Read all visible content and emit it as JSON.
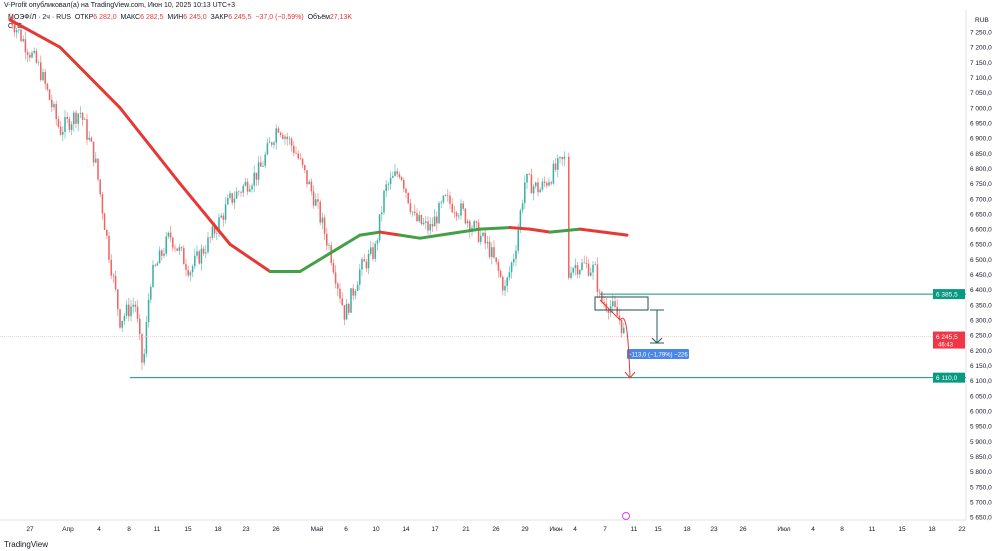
{
  "header": {
    "published": "V-Profit опубликовал(а) на TradingView.com, Июн 10, 2025 10:13 UTC+3"
  },
  "legend": {
    "symbol": "МОЭФ/Л · 2ч · RUS",
    "open_label": "ОТКР",
    "open": "6 282,0",
    "high_label": "МАКС",
    "high": "6 282,5",
    "low_label": "МИН",
    "low": "6 245,0",
    "close_label": "ЗАКР",
    "close": "6 245,5",
    "change": "−37,0 (−0,59%)",
    "vol_label": "Объём",
    "vol": "27,13K",
    "line2": "СТЕ"
  },
  "footer": {
    "brand": "TradingView"
  },
  "colors": {
    "up": "#26a69a",
    "down": "#ef5350",
    "ma_down": "#e53935",
    "ma_up": "#43a047",
    "level": "#089981",
    "measure": "#4a86e8",
    "axis_text": "#131722"
  },
  "chart_data": {
    "type": "candlestick",
    "currency": "RUB",
    "ylim": [
      5650,
      7300
    ],
    "yticks": [
      "7 250,0",
      "7 200,0",
      "7 150,0",
      "7 100,0",
      "7 050,0",
      "7 000,0",
      "6 950,0",
      "6 900,0",
      "6 850,0",
      "6 800,0",
      "6 750,0",
      "6 700,0",
      "6 650,0",
      "6 600,0",
      "6 550,0",
      "6 500,0",
      "6 450,0",
      "6 400,0",
      "6 350,0",
      "6 300,0",
      "6 250,0",
      "6 200,0",
      "6 150,0",
      "6 100,0",
      "6 050,0",
      "6 000,0",
      "5 950,0",
      "5 900,0",
      "5 850,0",
      "5 800,0",
      "5 750,0",
      "5 700,0",
      "5 650,0"
    ],
    "xticks": [
      "27",
      "Апр",
      "4",
      "8",
      "11",
      "15",
      "18",
      "23",
      "26",
      "Май",
      "6",
      "10",
      "14",
      "17",
      "21",
      "26",
      "29",
      "Июн",
      "4",
      "7",
      "11",
      "15",
      "18",
      "23",
      "26",
      "Июл",
      "4",
      "8",
      "11",
      "15",
      "18",
      "22"
    ],
    "price_path": [
      7300,
      7125,
      6925,
      6990,
      6830,
      6500,
      6300,
      6360,
      6135,
      6430,
      6580,
      6465,
      6565,
      6695,
      6795,
      6945,
      6860,
      6695,
      6530,
      6315,
      6465,
      6530,
      6730,
      6795,
      6630,
      6600,
      6695,
      6665,
      6600,
      6530,
      6400,
      6530,
      6760,
      6730,
      6795,
      6830,
      6400,
      6480,
      6480,
      6465,
      6365,
      6350,
      6300,
      6245.5
    ],
    "moving_average": [
      7290,
      7200,
      7000,
      6750,
      6550,
      6460,
      6460,
      6520,
      6580,
      6590,
      6580,
      6570,
      6585,
      6600,
      6605,
      6600,
      6590,
      6600,
      6580
    ],
    "ma_colors": [
      "down",
      "down",
      "down",
      "down",
      "down",
      "up",
      "up",
      "up",
      "up",
      "down",
      "up",
      "up",
      "up",
      "up",
      "down",
      "down",
      "up",
      "down"
    ],
    "levels": [
      {
        "price": 6385.5,
        "label": "6 385,5"
      },
      {
        "price": 6110.0,
        "label": "6 110,0"
      }
    ],
    "current_price": {
      "label": "6 245,5",
      "countdown": "46:43"
    },
    "measure": {
      "label": "−113,0 (−1,79%) −226"
    }
  }
}
